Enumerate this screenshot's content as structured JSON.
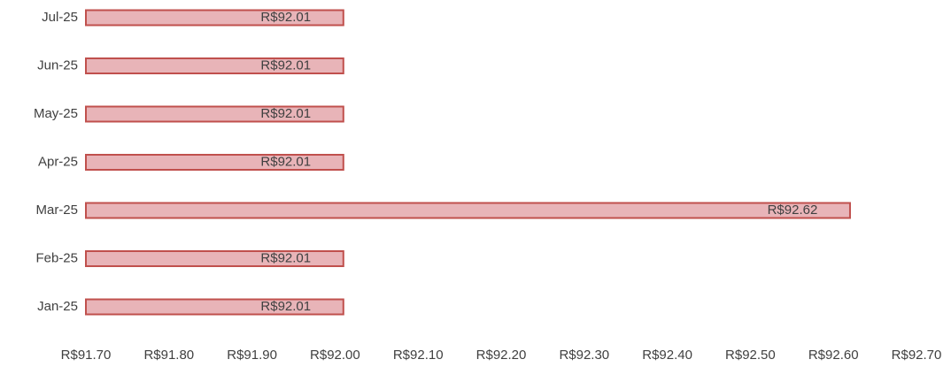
{
  "chart_data": {
    "type": "barh",
    "categories": [
      "Jan-25",
      "Feb-25",
      "Mar-25",
      "Apr-25",
      "May-25",
      "Jun-25",
      "Jul-25"
    ],
    "values": [
      92.01,
      92.01,
      92.62,
      92.01,
      92.01,
      92.01,
      92.01
    ],
    "value_labels": [
      "R$92.01",
      "R$92.01",
      "R$92.62",
      "R$92.01",
      "R$92.01",
      "R$92.01",
      "R$92.01"
    ],
    "color": "#e8b4b8",
    "edge_color": "#c0504d",
    "xlim": [
      91.7,
      92.7
    ],
    "xticks": [
      {
        "value": 91.7,
        "label": "R$91.70"
      },
      {
        "value": 91.8,
        "label": "R$91.80"
      },
      {
        "value": 91.9,
        "label": "R$91.90"
      },
      {
        "value": 92.0,
        "label": "R$92.00"
      },
      {
        "value": 92.1,
        "label": "R$92.10"
      },
      {
        "value": 92.2,
        "label": "R$92.20"
      },
      {
        "value": 92.3,
        "label": "R$92.30"
      },
      {
        "value": 92.4,
        "label": "R$92.40"
      },
      {
        "value": 92.5,
        "label": "R$92.50"
      },
      {
        "value": 92.6,
        "label": "R$92.60"
      },
      {
        "value": 92.7,
        "label": "R$92.70"
      }
    ]
  }
}
